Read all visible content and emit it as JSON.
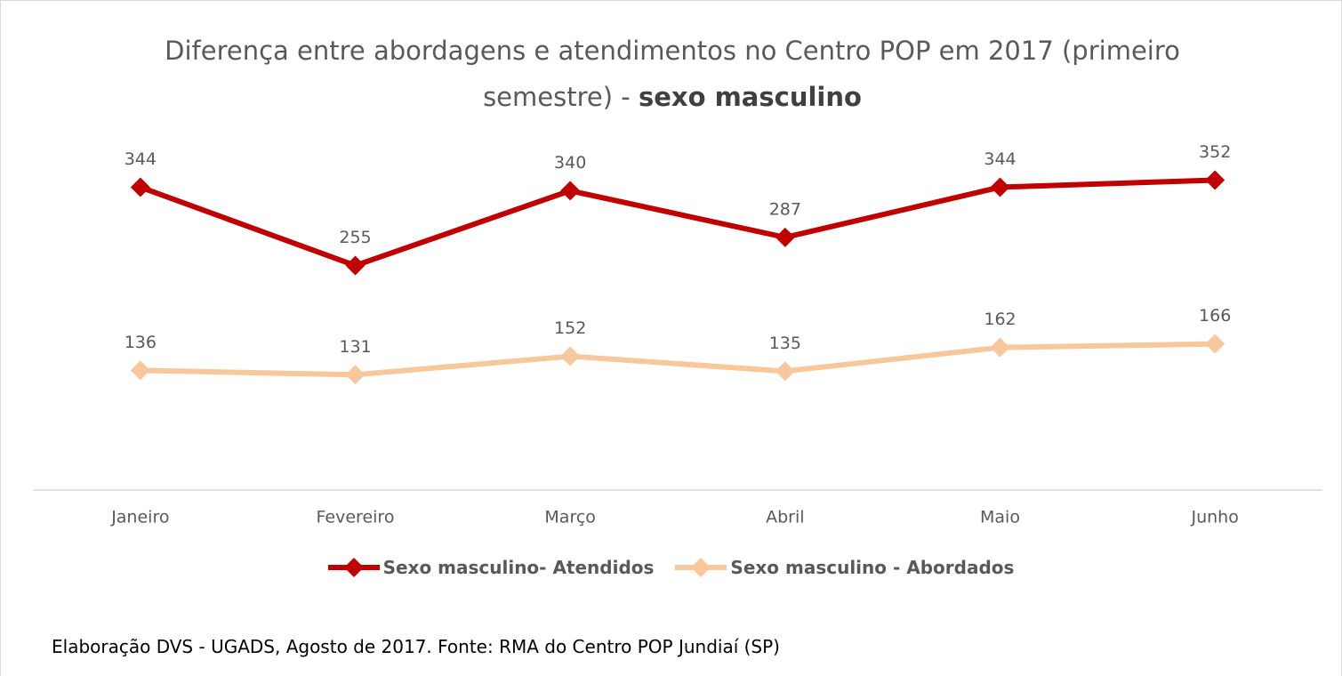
{
  "chart_data": {
    "type": "line",
    "title": "Diferença entre abordagens e atendimentos no Centro POP em 2017 (primeiro semestre) -",
    "title_emphasis": "sexo masculino",
    "categories": [
      "Janeiro",
      "Fevereiro",
      "Março",
      "Abril",
      "Maio",
      "Junho"
    ],
    "series": [
      {
        "name": "Sexo masculino- Atendidos",
        "color": "#c00000",
        "values": [
          344,
          255,
          340,
          287,
          344,
          352
        ]
      },
      {
        "name": "Sexo masculino - Abordados",
        "color": "#f8c89c",
        "values": [
          136,
          131,
          152,
          135,
          162,
          166
        ]
      }
    ],
    "ylim": [
      0,
      400
    ],
    "grid": false,
    "legend": "bottom",
    "note": "Elaboração DVS - UGADS, Agosto de 2017. Fonte: RMA do Centro POP Jundiaí (SP)"
  }
}
